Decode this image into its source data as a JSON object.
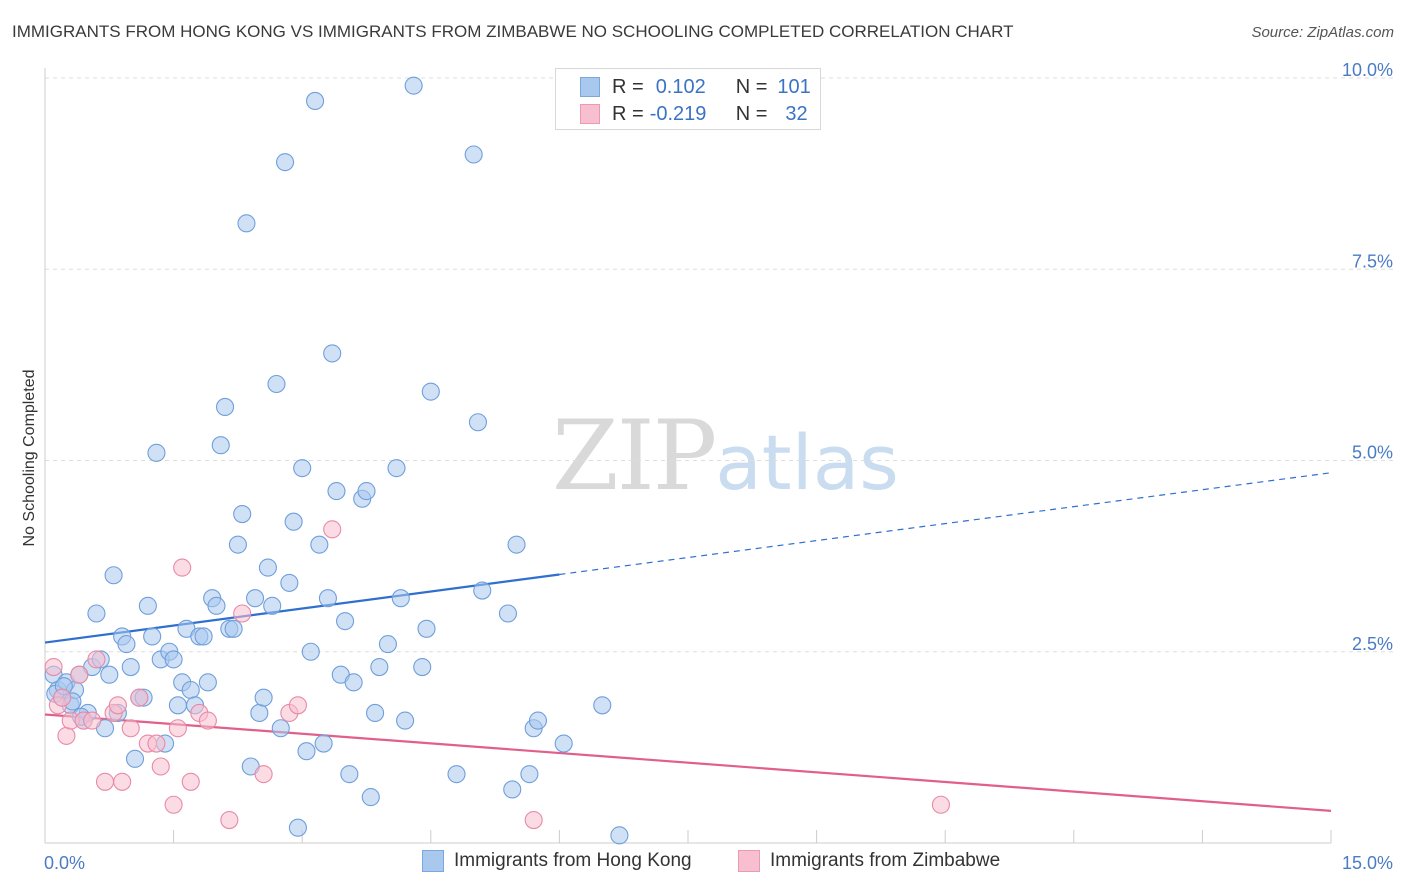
{
  "title": "IMMIGRANTS FROM HONG KONG VS IMMIGRANTS FROM ZIMBABWE NO SCHOOLING COMPLETED CORRELATION CHART",
  "source": "Source: ZipAtlas.com",
  "watermark": {
    "a": "ZIP",
    "b": "atlas"
  },
  "legend": {
    "rows": [
      {
        "r_label": "R =",
        "r_value": "0.102",
        "n_label": "N =",
        "n_value": "101",
        "color": "#a9c8ee",
        "border": "#7aa7de"
      },
      {
        "r_label": "R =",
        "r_value": "-0.219",
        "n_label": "N =",
        "n_value": "32",
        "color": "#f7bfd0",
        "border": "#ec9ab3"
      }
    ]
  },
  "bottom_legend": [
    {
      "label": "Immigrants from Hong Kong",
      "color": "#a9c8ee",
      "border": "#7aa7de"
    },
    {
      "label": "Immigrants from Zimbabwe",
      "color": "#f7bfd0",
      "border": "#ec9ab3"
    }
  ],
  "chart_data": {
    "type": "scatter",
    "title": "IMMIGRANTS FROM HONG KONG VS IMMIGRANTS FROM ZIMBABWE NO SCHOOLING COMPLETED CORRELATION CHART",
    "xlabel": "",
    "ylabel": "No Schooling Completed",
    "xlim": [
      0,
      15
    ],
    "ylim": [
      0,
      10
    ],
    "x_tick_labels": [
      "0.0%",
      "15.0%"
    ],
    "y_ticks": [
      2.5,
      5.0,
      7.5,
      10.0
    ],
    "y_tick_labels": [
      "2.5%",
      "5.0%",
      "7.5%",
      "10.0%"
    ],
    "grid": true,
    "series": [
      {
        "name": "Immigrants from Hong Kong",
        "color": "#a9c8ee",
        "edge": "#6f9fdc",
        "trend": {
          "x0": 0,
          "y0": 2.62,
          "x1": 6.0,
          "y1": 3.51,
          "dash_to_x": 15,
          "dash_to_y": 4.84,
          "color": "#2f6fcf"
        },
        "points": [
          [
            0.1,
            2.2
          ],
          [
            0.15,
            2.0
          ],
          [
            0.2,
            1.9
          ],
          [
            0.25,
            2.1
          ],
          [
            0.3,
            1.8
          ],
          [
            0.35,
            2.0
          ],
          [
            0.4,
            2.2
          ],
          [
            0.45,
            1.6
          ],
          [
            0.5,
            1.7
          ],
          [
            0.55,
            2.3
          ],
          [
            0.6,
            3.0
          ],
          [
            0.65,
            2.4
          ],
          [
            0.7,
            1.5
          ],
          [
            0.75,
            2.2
          ],
          [
            0.8,
            3.5
          ],
          [
            0.85,
            1.7
          ],
          [
            0.9,
            2.7
          ],
          [
            0.95,
            2.6
          ],
          [
            1.0,
            2.3
          ],
          [
            1.05,
            1.1
          ],
          [
            1.1,
            1.9
          ],
          [
            1.15,
            1.9
          ],
          [
            1.2,
            3.1
          ],
          [
            1.25,
            2.7
          ],
          [
            1.3,
            5.1
          ],
          [
            1.35,
            2.4
          ],
          [
            1.4,
            1.3
          ],
          [
            1.45,
            2.5
          ],
          [
            1.5,
            2.4
          ],
          [
            1.55,
            1.8
          ],
          [
            1.6,
            2.1
          ],
          [
            1.65,
            2.8
          ],
          [
            1.7,
            2.0
          ],
          [
            1.75,
            1.8
          ],
          [
            1.8,
            2.7
          ],
          [
            1.85,
            2.7
          ],
          [
            1.9,
            2.1
          ],
          [
            1.95,
            3.2
          ],
          [
            2.0,
            3.1
          ],
          [
            2.05,
            5.2
          ],
          [
            2.1,
            5.7
          ],
          [
            2.15,
            2.8
          ],
          [
            2.2,
            2.8
          ],
          [
            2.25,
            3.9
          ],
          [
            2.3,
            4.3
          ],
          [
            2.35,
            8.1
          ],
          [
            2.4,
            1.0
          ],
          [
            2.45,
            3.2
          ],
          [
            2.5,
            1.7
          ],
          [
            2.55,
            1.9
          ],
          [
            2.6,
            3.6
          ],
          [
            2.65,
            3.1
          ],
          [
            2.7,
            6.0
          ],
          [
            2.75,
            1.5
          ],
          [
            2.8,
            8.9
          ],
          [
            2.85,
            3.4
          ],
          [
            2.9,
            4.2
          ],
          [
            2.95,
            0.2
          ],
          [
            3.0,
            4.9
          ],
          [
            3.05,
            1.2
          ],
          [
            3.1,
            2.5
          ],
          [
            3.15,
            9.7
          ],
          [
            3.2,
            3.9
          ],
          [
            3.25,
            1.3
          ],
          [
            3.3,
            3.2
          ],
          [
            3.35,
            6.4
          ],
          [
            3.4,
            4.6
          ],
          [
            3.45,
            2.2
          ],
          [
            3.5,
            2.9
          ],
          [
            3.55,
            0.9
          ],
          [
            3.6,
            2.1
          ],
          [
            3.7,
            4.5
          ],
          [
            3.75,
            4.6
          ],
          [
            3.8,
            0.6
          ],
          [
            3.85,
            1.7
          ],
          [
            3.9,
            2.3
          ],
          [
            4.0,
            2.6
          ],
          [
            4.1,
            4.9
          ],
          [
            4.15,
            3.2
          ],
          [
            4.2,
            1.6
          ],
          [
            4.3,
            9.9
          ],
          [
            4.4,
            2.3
          ],
          [
            4.45,
            2.8
          ],
          [
            4.5,
            5.9
          ],
          [
            4.8,
            0.9
          ],
          [
            5.0,
            9.0
          ],
          [
            5.05,
            5.5
          ],
          [
            5.1,
            3.3
          ],
          [
            5.4,
            3.0
          ],
          [
            5.45,
            0.7
          ],
          [
            5.5,
            3.9
          ],
          [
            5.65,
            0.9
          ],
          [
            5.7,
            1.5
          ],
          [
            5.75,
            1.6
          ],
          [
            6.05,
            1.3
          ],
          [
            6.5,
            1.8
          ],
          [
            6.7,
            0.1
          ],
          [
            0.12,
            1.95
          ],
          [
            0.22,
            2.05
          ],
          [
            0.32,
            1.85
          ],
          [
            0.42,
            1.65
          ]
        ]
      },
      {
        "name": "Immigrants from Zimbabwe",
        "color": "#f7bfd0",
        "edge": "#e88aa7",
        "trend": {
          "x0": 0,
          "y0": 1.68,
          "x1": 15,
          "y1": 0.42,
          "color": "#e0608a"
        },
        "points": [
          [
            0.1,
            2.3
          ],
          [
            0.15,
            1.8
          ],
          [
            0.2,
            1.9
          ],
          [
            0.25,
            1.4
          ],
          [
            0.3,
            1.6
          ],
          [
            0.4,
            2.2
          ],
          [
            0.45,
            1.6
          ],
          [
            0.55,
            1.6
          ],
          [
            0.6,
            2.4
          ],
          [
            0.7,
            0.8
          ],
          [
            0.8,
            1.7
          ],
          [
            0.85,
            1.8
          ],
          [
            0.9,
            0.8
          ],
          [
            1.0,
            1.5
          ],
          [
            1.1,
            1.9
          ],
          [
            1.2,
            1.3
          ],
          [
            1.3,
            1.3
          ],
          [
            1.35,
            1.0
          ],
          [
            1.5,
            0.5
          ],
          [
            1.55,
            1.5
          ],
          [
            1.6,
            3.6
          ],
          [
            1.7,
            0.8
          ],
          [
            1.8,
            1.7
          ],
          [
            1.9,
            1.6
          ],
          [
            2.15,
            0.3
          ],
          [
            2.3,
            3.0
          ],
          [
            2.55,
            0.9
          ],
          [
            2.85,
            1.7
          ],
          [
            2.95,
            1.8
          ],
          [
            3.35,
            4.1
          ],
          [
            5.7,
            0.3
          ],
          [
            10.45,
            0.5
          ]
        ]
      }
    ]
  }
}
